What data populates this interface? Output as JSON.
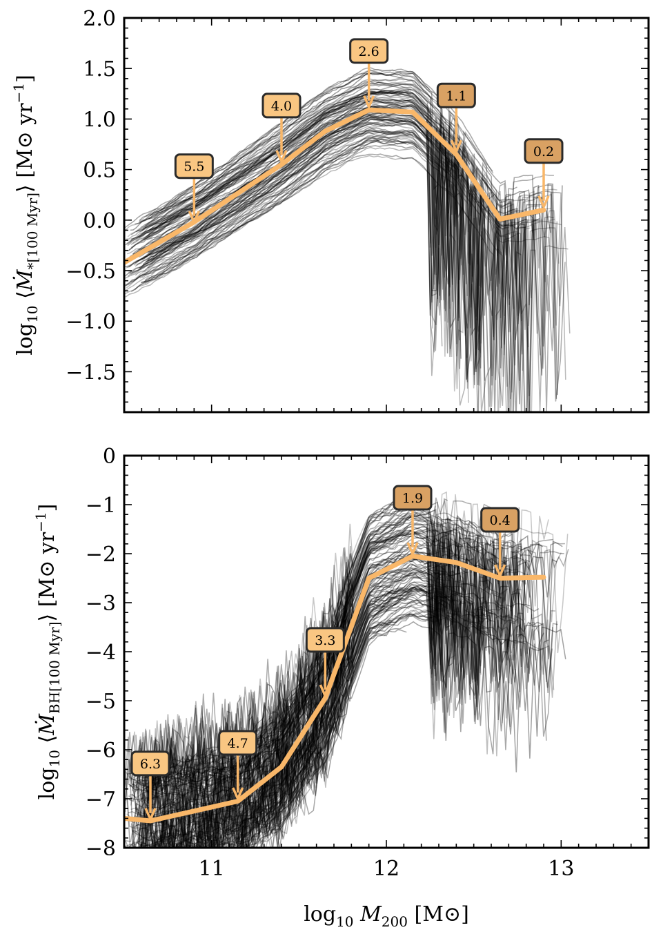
{
  "chart_data": [
    {
      "type": "line",
      "panel": "top",
      "ylabel": "log10 ⟨Ṁ*[100 Myr]⟩ [M⊙ yr⁻¹]",
      "ylabel_parts": {
        "prefix": "log",
        "sub": "10",
        "langle": "⟨",
        "sym": "Ṁ",
        "symsub": "*[100 Myr]",
        "rangle": "⟩",
        "unit": "[M⊙ yr",
        "exp": "−1",
        "close": "]"
      },
      "xlim": [
        10.5,
        13.5
      ],
      "ylim": [
        -1.9,
        2.0
      ],
      "yticks": [
        -1.5,
        -1.0,
        -0.5,
        0.0,
        0.5,
        1.0,
        1.5,
        2.0
      ],
      "ytick_labels": [
        "−1.5",
        "−1.0",
        "−0.5",
        "0.0",
        "0.5",
        "1.0",
        "1.5",
        "2.0"
      ],
      "xticks": [
        11,
        12,
        13
      ],
      "series": [
        {
          "name": "median",
          "color": "#f9b769",
          "x": [
            10.5,
            10.9,
            11.4,
            11.65,
            11.9,
            12.15,
            12.4,
            12.65,
            12.9
          ],
          "y": [
            -0.42,
            -0.02,
            0.55,
            0.88,
            1.09,
            1.07,
            0.65,
            0.01,
            0.1
          ]
        }
      ],
      "annotations": [
        {
          "label": "5.5",
          "x": 10.9,
          "y": -0.02
        },
        {
          "label": "4.0",
          "x": 11.4,
          "y": 0.58
        },
        {
          "label": "2.6",
          "x": 11.9,
          "y": 1.12
        },
        {
          "label": "1.1",
          "x": 12.4,
          "y": 0.68
        },
        {
          "label": "0.2",
          "x": 12.9,
          "y": 0.13
        }
      ],
      "background_tracks": "many individual semi-transparent black galaxy tracks"
    },
    {
      "type": "line",
      "panel": "bottom",
      "ylabel": "log10 ⟨ṀBH[100 Myr]⟩ [M⊙ yr⁻¹]",
      "ylabel_parts": {
        "prefix": "log",
        "sub": "10",
        "langle": "⟨",
        "sym": "Ṁ",
        "symsub": "BH[100 Myr]",
        "rangle": "⟩",
        "unit": "[M⊙ yr",
        "exp": "−1",
        "close": "]"
      },
      "xlabel": "log10 M200 [M⊙]",
      "xlabel_parts": {
        "prefix": "log",
        "sub": "10",
        "sym": "M",
        "symsub": "200",
        "unit": "[M⊙]"
      },
      "xlim": [
        10.5,
        13.5
      ],
      "ylim": [
        -8,
        0
      ],
      "yticks": [
        -8,
        -7,
        -6,
        -5,
        -4,
        -3,
        -2,
        -1,
        0
      ],
      "ytick_labels": [
        "−8",
        "−7",
        "−6",
        "−5",
        "−4",
        "−3",
        "−2",
        "−1",
        "0"
      ],
      "xticks": [
        11,
        12,
        13
      ],
      "xtick_labels": [
        "11",
        "12",
        "13"
      ],
      "series": [
        {
          "name": "median",
          "color": "#f9b769",
          "x": [
            10.5,
            10.65,
            10.9,
            11.15,
            11.4,
            11.65,
            11.9,
            12.15,
            12.4,
            12.65,
            12.9
          ],
          "y": [
            -7.4,
            -7.45,
            -7.25,
            -7.05,
            -6.35,
            -4.95,
            -2.5,
            -2.05,
            -2.18,
            -2.5,
            -2.48
          ]
        }
      ],
      "annotations": [
        {
          "label": "6.3",
          "x": 10.65,
          "y": -7.42
        },
        {
          "label": "4.7",
          "x": 11.15,
          "y": -7.0
        },
        {
          "label": "3.3",
          "x": 11.65,
          "y": -4.9
        },
        {
          "label": "1.9",
          "x": 12.15,
          "y": -2.0
        },
        {
          "label": "0.4",
          "x": 12.65,
          "y": -2.45
        }
      ],
      "background_tracks": "many individual semi-transparent black galaxy/black-hole tracks"
    }
  ]
}
